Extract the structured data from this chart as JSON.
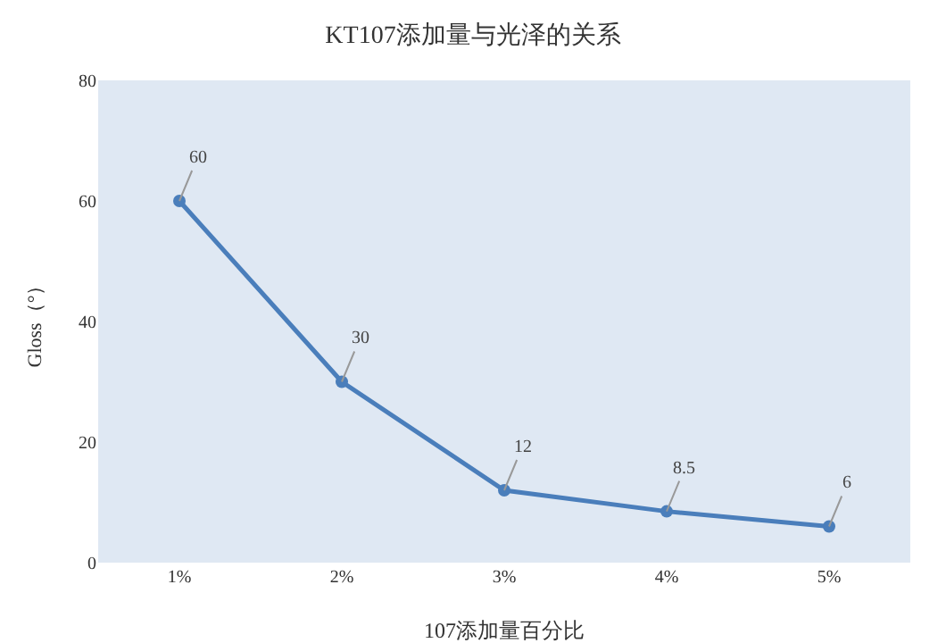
{
  "chart_data": {
    "type": "line",
    "title": "KT107添加量与光泽的关系",
    "xlabel": "107添加量百分比",
    "ylabel": "Gloss（°）",
    "categories": [
      "1%",
      "2%",
      "3%",
      "4%",
      "5%"
    ],
    "series": [
      {
        "color": "#4a7ebb",
        "values": [
          60,
          30,
          12,
          8.5,
          6
        ]
      }
    ],
    "ylim": [
      0,
      80
    ],
    "yticks": [
      0,
      20,
      40,
      60,
      80
    ],
    "grid": false,
    "marker": "circle",
    "line_style": "solid",
    "data_labels": true
  }
}
